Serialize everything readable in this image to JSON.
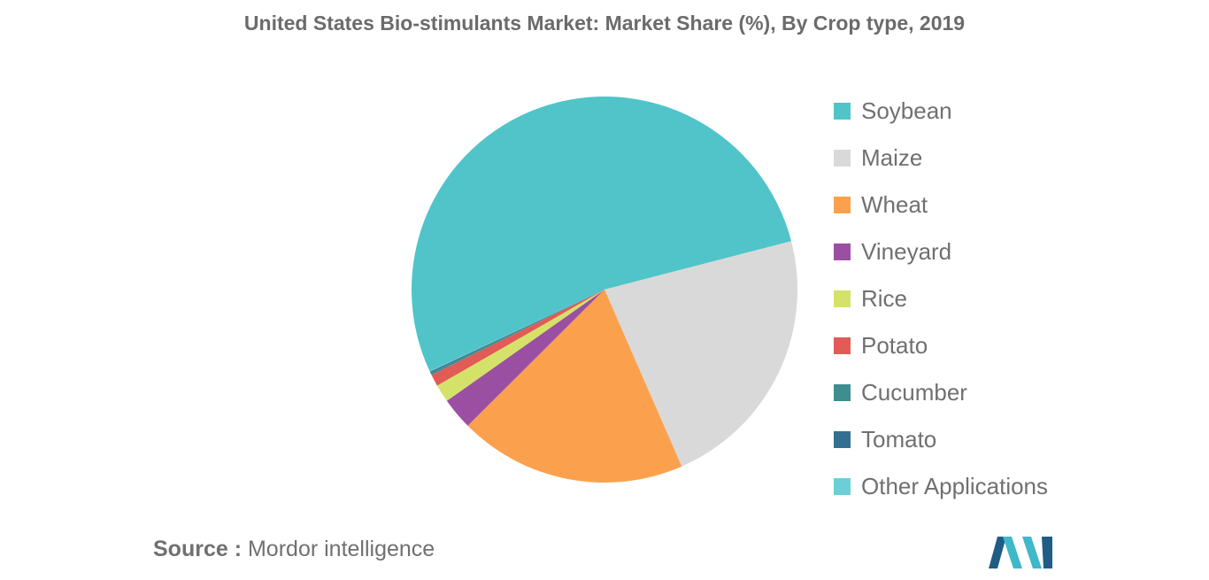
{
  "chart_data": {
    "type": "pie",
    "title": "United States Bio-stimulants Market: Market Share (%), By Crop type, 2019",
    "legend_position": "right",
    "slices": [
      {
        "label": "Soybean",
        "value": 53.2,
        "color": "#50c4c9"
      },
      {
        "label": "Maize",
        "value": 22.6,
        "color": "#d9d9d9"
      },
      {
        "label": "Wheat",
        "value": 19.2,
        "color": "#fba14d"
      },
      {
        "label": "Vineyard",
        "value": 2.7,
        "color": "#9b4fa3"
      },
      {
        "label": "Rice",
        "value": 1.5,
        "color": "#d4e269"
      },
      {
        "label": "Potato",
        "value": 1.0,
        "color": "#e25b56"
      },
      {
        "label": "Cucumber",
        "value": 0.2,
        "color": "#3e8e8e"
      },
      {
        "label": "Tomato",
        "value": 0.1,
        "color": "#336f8f"
      },
      {
        "label": "Other Applications",
        "value": 0.05,
        "color": "#6ccfd5"
      }
    ]
  },
  "source": {
    "label": "Source :",
    "text": "Mordor intelligence"
  },
  "logo": {
    "name": "mordor-intelligence-logo",
    "colors": [
      "#1f5d86",
      "#3fb8c9"
    ]
  }
}
